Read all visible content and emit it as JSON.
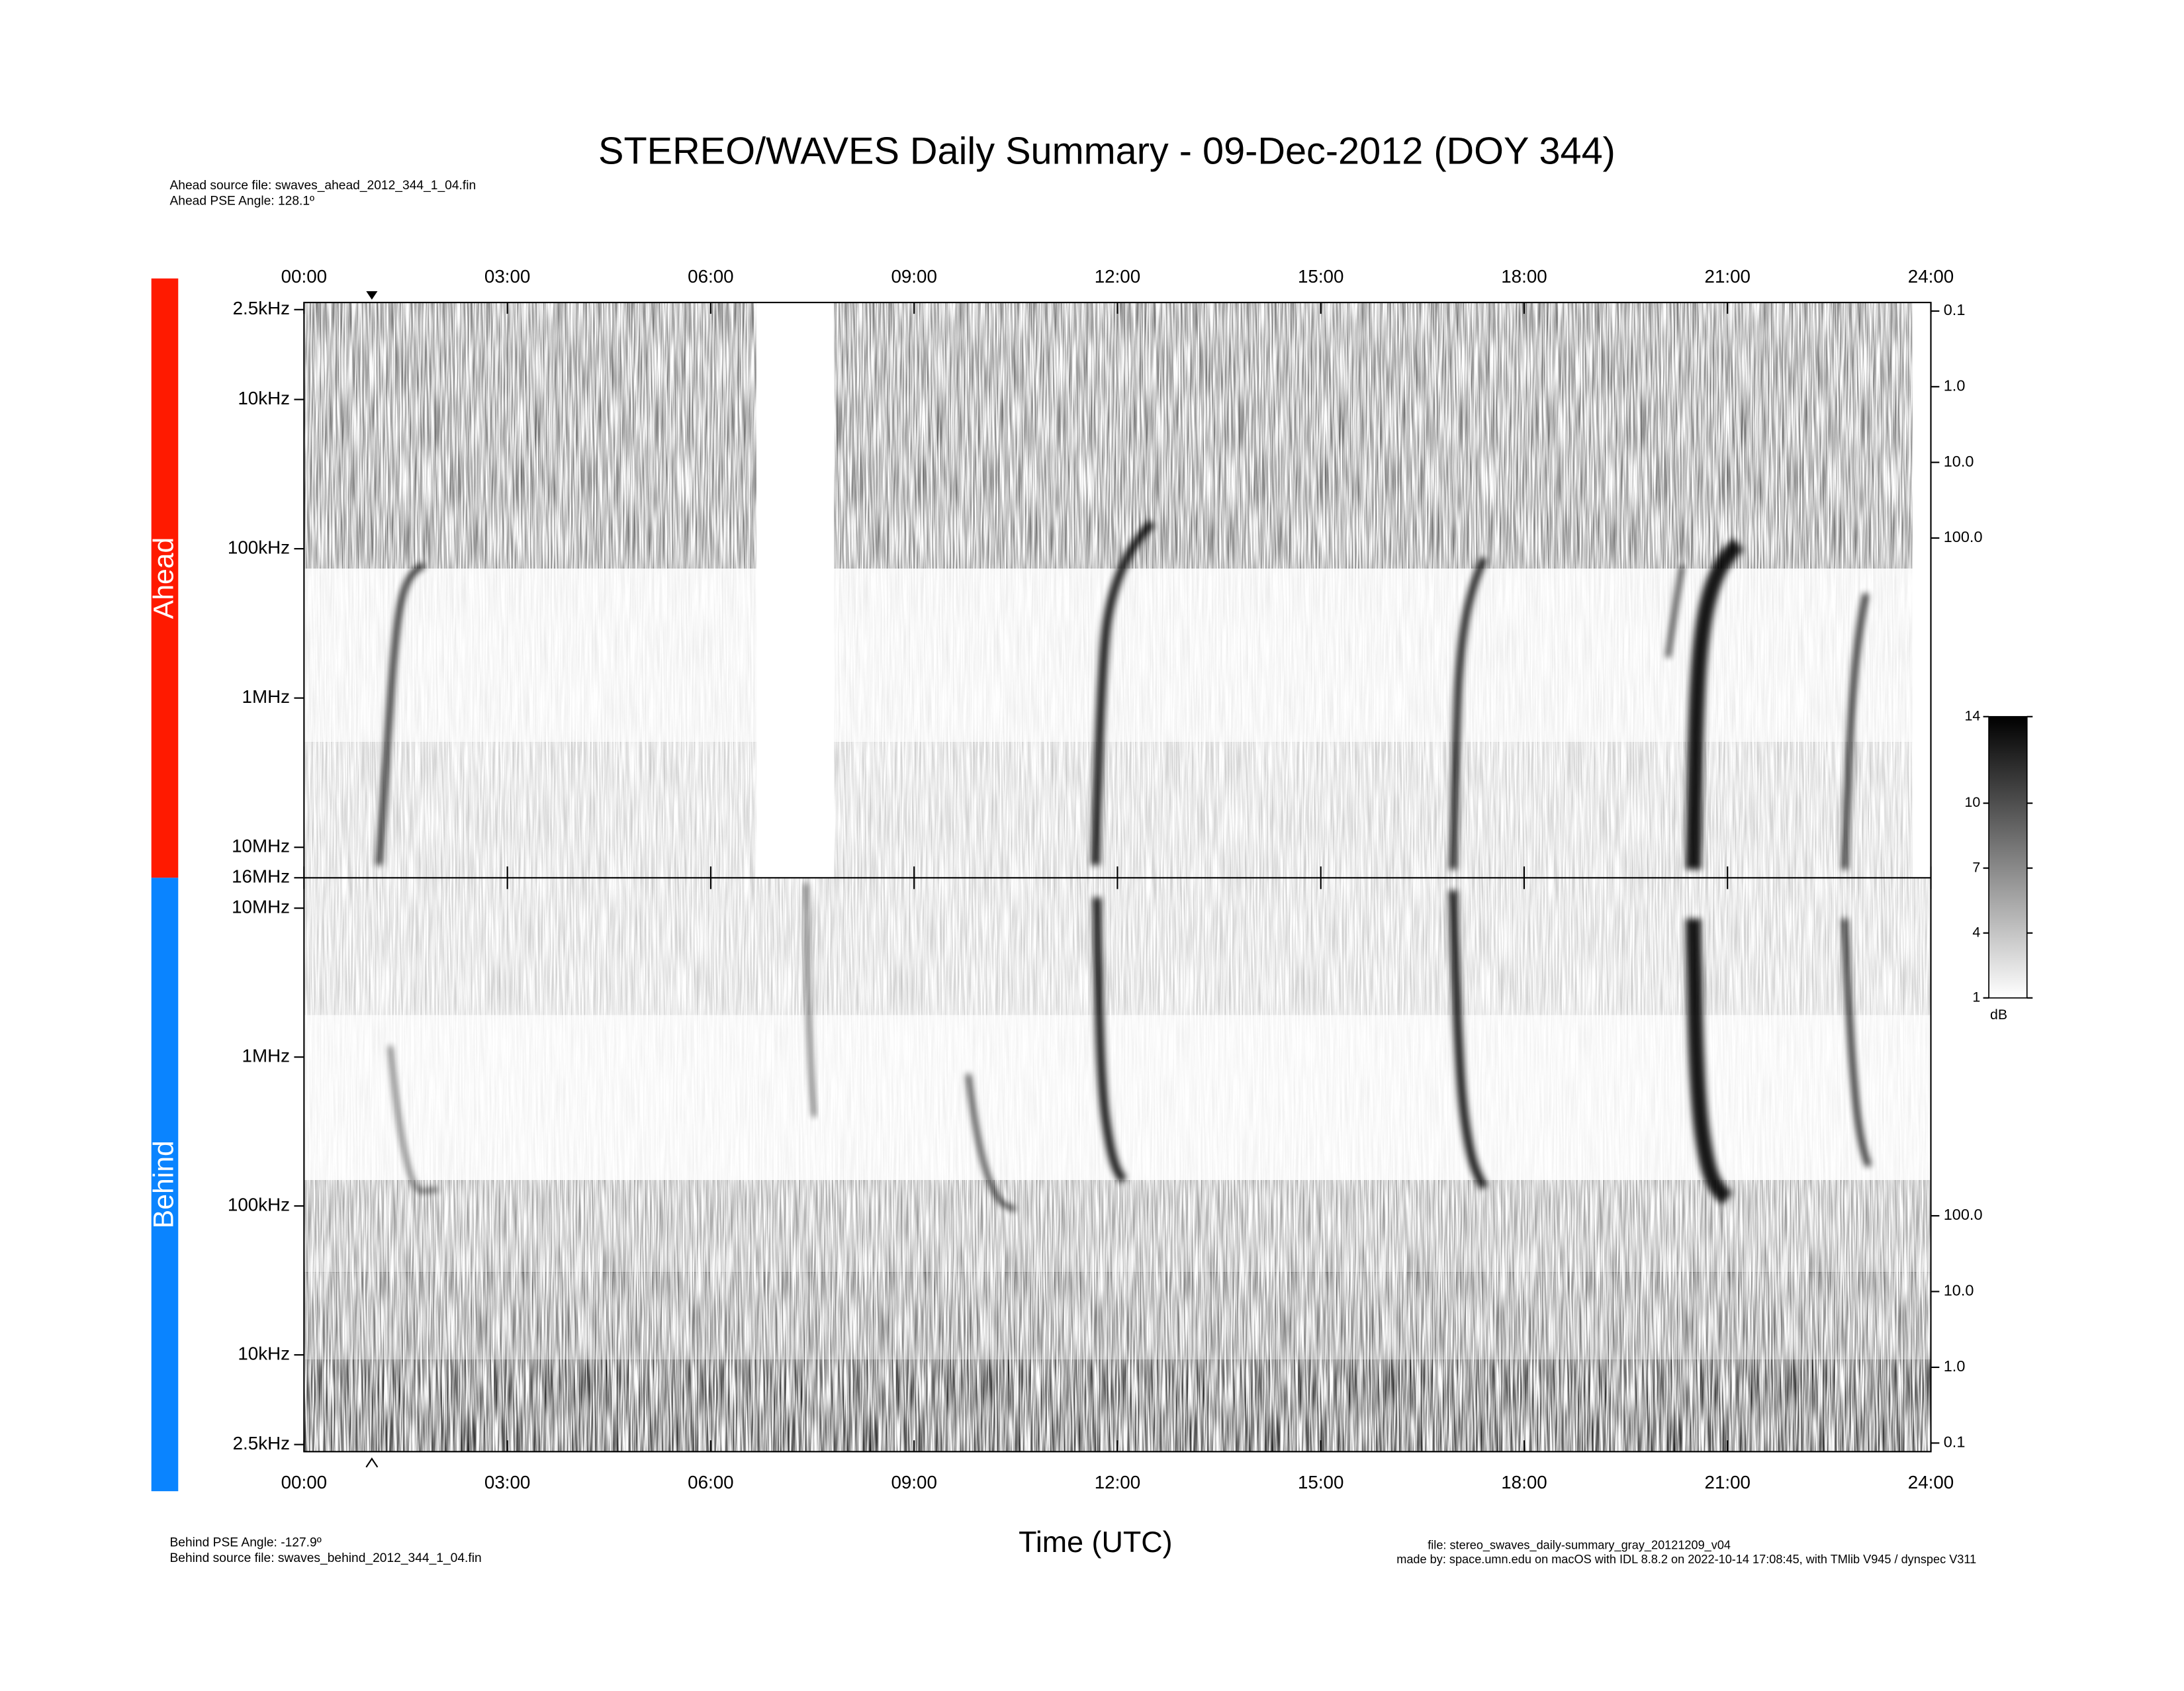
{
  "chart_data": {
    "type": "spectrogram",
    "title": "STEREO/WAVES Daily Summary - 09-Dec-2012 (DOY 344)",
    "notes": {
      "ahead_source": "Ahead source file: swaves_ahead_2012_344_1_04.fin",
      "ahead_angle": "Ahead PSE Angle:  128.1º",
      "behind_angle": "Behind PSE Angle: -127.9º",
      "behind_source": "Behind source file: swaves_behind_2012_344_1_04.fin",
      "file": "file: stereo_swaves_daily-summary_gray_20121209_v04",
      "made_by": "made by: space.umn.edu on macOS with IDL 8.8.2 on 2022-10-14 17:08:45, with TMlib V945 / dynspec V311"
    },
    "xlabel": "Time (UTC)",
    "xlim": [
      0,
      24
    ],
    "xticks": [
      {
        "value": 0,
        "label": "00:00"
      },
      {
        "value": 3,
        "label": "03:00"
      },
      {
        "value": 6,
        "label": "06:00"
      },
      {
        "value": 9,
        "label": "09:00"
      },
      {
        "value": 12,
        "label": "12:00"
      },
      {
        "value": 15,
        "label": "15:00"
      },
      {
        "value": 18,
        "label": "18:00"
      },
      {
        "value": 21,
        "label": "21:00"
      },
      {
        "value": 24,
        "label": "24:00"
      }
    ],
    "log_y": true,
    "panels": [
      {
        "label": "Ahead",
        "color": "#ff1a00",
        "ylim": [
          2.24,
          16000
        ],
        "yticks": [
          {
            "value": 2.5,
            "label": "2.5kHz"
          },
          {
            "value": 10,
            "label": "10kHz"
          },
          {
            "value": 100,
            "label": "100kHz"
          },
          {
            "value": 1000,
            "label": "1MHz"
          },
          {
            "value": 10000,
            "label": "10MHz"
          },
          {
            "value": 16000,
            "label": "16MHz"
          }
        ],
        "y2lim": [
          0.077,
          3100000
        ],
        "y2ticks": [
          0.1,
          {
            "value": 1,
            "label": "1.0"
          },
          {
            "value": 10,
            "label": "10.0"
          },
          {
            "value": 100,
            "label": "100.0"
          }
        ]
      },
      {
        "label": "Behind",
        "color": "#0a84ff",
        "ylim": [
          16000,
          2.24
        ],
        "yticks": [
          {
            "value": 10000,
            "label": "10MHz"
          },
          {
            "value": 1000,
            "label": "1MHz"
          },
          {
            "value": 100,
            "label": "100kHz"
          },
          {
            "value": 10,
            "label": "10kHz"
          },
          {
            "value": 2.5,
            "label": "2.5kHz"
          }
        ],
        "y2lim": [
          2900000,
          0.077
        ],
        "y2ticks": [
          {
            "value": 100,
            "label": "100.0"
          },
          {
            "value": 10,
            "label": "10.0"
          },
          {
            "value": 1,
            "label": "1.0"
          },
          0.1
        ]
      }
    ],
    "colorbar": {
      "label": "dB",
      "lim": [
        1,
        14
      ],
      "ticks": [
        1,
        4,
        7,
        10,
        14
      ]
    }
  }
}
